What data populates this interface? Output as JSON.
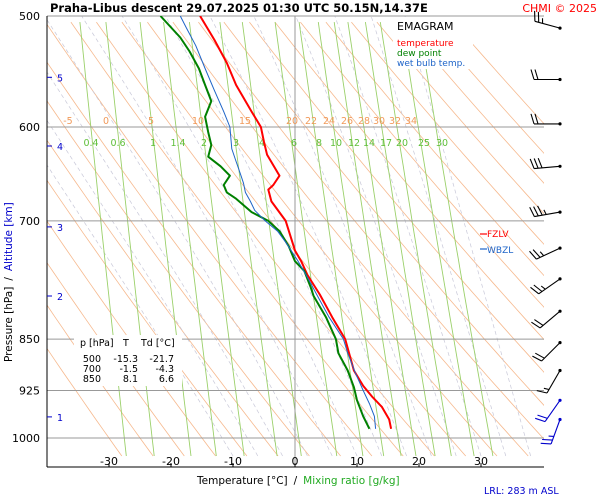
{
  "header": {
    "title": "Praha-Libus   descent   29.07.2025 01:30 UTC   50.15N,14.37E",
    "copyright": "CHMI © 2025"
  },
  "legend": {
    "title": "EMAGRAM",
    "items": [
      {
        "label": "temperature",
        "color": "#ff0000"
      },
      {
        "label": "dew point",
        "color": "#008000"
      },
      {
        "label": "wet bulb temp.",
        "color": "#1e64c8"
      }
    ]
  },
  "axes": {
    "ylabel_pressure": "Pressure [hPa]",
    "ylabel_sep": "/",
    "ylabel_altitude": "Altitude [km]",
    "xlabel_temp": "Temperature [°C]",
    "xlabel_sep": "/",
    "xlabel_mixing": "Mixing ratio [g/kg]"
  },
  "markers": {
    "fzlv": "FZLV",
    "wbzl": "WBZL"
  },
  "footer": {
    "lrl": "LRL: 283 m ASL"
  },
  "table": {
    "headers": [
      "p [hPa]",
      "T",
      "Td [°C]"
    ],
    "rows": [
      [
        "500",
        "-15.3",
        "-21.7"
      ],
      [
        "700",
        "-1.5",
        "-4.3"
      ],
      [
        "850",
        "8.1",
        "6.6"
      ]
    ]
  },
  "chart_data": {
    "type": "line",
    "xlim": [
      -39,
      40
    ],
    "ylim": [
      1020,
      500
    ],
    "x_ticks": [
      -30,
      -20,
      -10,
      0,
      10,
      20,
      30
    ],
    "y_ticks": [
      500,
      600,
      700,
      850,
      925,
      1000
    ],
    "altitude_ticks": [
      {
        "km": "1",
        "p": 966
      },
      {
        "km": "2",
        "p": 792
      },
      {
        "km": "3",
        "p": 707
      },
      {
        "km": "4",
        "p": 619
      },
      {
        "km": "5",
        "p": 553
      }
    ],
    "dry_adiabat_labels": [
      "-5",
      "0",
      "5",
      "10",
      "15",
      "20",
      "22",
      "24",
      "26",
      "28",
      "30",
      "32",
      "34"
    ],
    "mixing_ratio_labels": [
      "0.4",
      "0.6",
      "1",
      "1.4",
      "2",
      "3",
      "4",
      "6",
      "8",
      "10",
      "12",
      "14",
      "17",
      "20",
      "25",
      "30"
    ],
    "series": [
      {
        "name": "temperature",
        "color": "#ff0000",
        "points": [
          [
            15.5,
            985
          ],
          [
            15.2,
            970
          ],
          [
            14,
            950
          ],
          [
            12.5,
            935
          ],
          [
            11,
            918
          ],
          [
            9.5,
            895
          ],
          [
            8.1,
            850
          ],
          [
            6,
            820
          ],
          [
            4,
            790
          ],
          [
            2,
            765
          ],
          [
            1,
            748
          ],
          [
            0,
            735
          ],
          [
            -1.5,
            700
          ],
          [
            -3.8,
            678
          ],
          [
            -4.3,
            665
          ],
          [
            -3.5,
            660
          ],
          [
            -2.5,
            650
          ],
          [
            -4.5,
            628
          ],
          [
            -5,
            615
          ],
          [
            -5.5,
            600
          ],
          [
            -7,
            585
          ],
          [
            -9.5,
            560
          ],
          [
            -11,
            540
          ],
          [
            -13,
            520
          ],
          [
            -15.3,
            500
          ]
        ]
      },
      {
        "name": "dew point",
        "color": "#008000",
        "points": [
          [
            12,
            985
          ],
          [
            11,
            965
          ],
          [
            10,
            940
          ],
          [
            9.5,
            920
          ],
          [
            8.5,
            895
          ],
          [
            7,
            870
          ],
          [
            6.6,
            850
          ],
          [
            5,
            820
          ],
          [
            3,
            792
          ],
          [
            2.5,
            780
          ],
          [
            1.5,
            760
          ],
          [
            0,
            748
          ],
          [
            -1,
            730
          ],
          [
            -2.5,
            712
          ],
          [
            -4.3,
            700
          ],
          [
            -7,
            690
          ],
          [
            -9.5,
            675
          ],
          [
            -11,
            668
          ],
          [
            -11.5,
            660
          ],
          [
            -10.5,
            650
          ],
          [
            -12,
            640
          ],
          [
            -14,
            630
          ],
          [
            -13.5,
            618
          ],
          [
            -14,
            605
          ],
          [
            -14.5,
            590
          ],
          [
            -13.5,
            575
          ],
          [
            -14.5,
            560
          ],
          [
            -15.5,
            545
          ],
          [
            -17,
            530
          ],
          [
            -18.5,
            518
          ],
          [
            -21.7,
            500
          ]
        ]
      },
      {
        "name": "wet bulb temp.",
        "color": "#1e64c8",
        "points": [
          [
            13,
            985
          ],
          [
            12.8,
            965
          ],
          [
            12,
            945
          ],
          [
            11,
            925
          ],
          [
            9.8,
            900
          ],
          [
            8.5,
            870
          ],
          [
            7.8,
            850
          ],
          [
            5.5,
            820
          ],
          [
            3.5,
            790
          ],
          [
            2,
            768
          ],
          [
            0.5,
            748
          ],
          [
            -1.5,
            725
          ],
          [
            -2.8,
            712
          ],
          [
            -4.8,
            700
          ],
          [
            -6.5,
            688
          ],
          [
            -7.2,
            678
          ],
          [
            -8,
            668
          ],
          [
            -8.3,
            658
          ],
          [
            -8.8,
            648
          ],
          [
            -9.5,
            635
          ],
          [
            -10.2,
            622
          ],
          [
            -10.5,
            600
          ],
          [
            -11.5,
            585
          ],
          [
            -13,
            565
          ],
          [
            -14.5,
            545
          ],
          [
            -16,
            525
          ],
          [
            -17.5,
            510
          ],
          [
            -18.5,
            500
          ]
        ]
      }
    ],
    "wind_barbs": [
      {
        "p": 510,
        "dir": 285,
        "speed_kt": 25
      },
      {
        "p": 555,
        "dir": 270,
        "speed_kt": 20
      },
      {
        "p": 597,
        "dir": 270,
        "speed_kt": 20
      },
      {
        "p": 640,
        "dir": 265,
        "speed_kt": 30
      },
      {
        "p": 690,
        "dir": 260,
        "speed_kt": 35
      },
      {
        "p": 732,
        "dir": 245,
        "speed_kt": 25
      },
      {
        "p": 770,
        "dir": 235,
        "speed_kt": 25
      },
      {
        "p": 812,
        "dir": 230,
        "speed_kt": 20
      },
      {
        "p": 855,
        "dir": 225,
        "speed_kt": 20
      },
      {
        "p": 895,
        "dir": 210,
        "speed_kt": 15
      },
      {
        "p": 940,
        "dir": 215,
        "speed_kt": 20
      },
      {
        "p": 970,
        "dir": 200,
        "speed_kt": 25
      }
    ]
  }
}
